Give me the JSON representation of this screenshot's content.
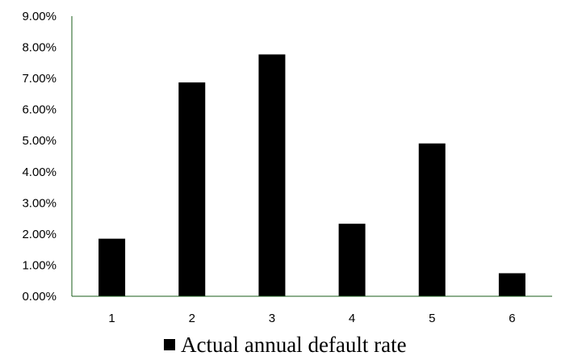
{
  "chart_data": {
    "type": "bar",
    "categories": [
      "1",
      "2",
      "3",
      "4",
      "5",
      "6"
    ],
    "series": [
      {
        "name": "Actual annual default rate",
        "values": [
          0.0185,
          0.0687,
          0.0777,
          0.0233,
          0.0491,
          0.0074
        ],
        "color": "#000000"
      }
    ],
    "ylim": [
      0,
      0.09
    ],
    "yticks": [
      0,
      0.01,
      0.02,
      0.03,
      0.04,
      0.05,
      0.06,
      0.07,
      0.08,
      0.09
    ],
    "ytick_labels": [
      "0.00%",
      "1.00%",
      "2.00%",
      "3.00%",
      "4.00%",
      "5.00%",
      "6.00%",
      "7.00%",
      "8.00%",
      "9.00%"
    ],
    "title": "",
    "xlabel": "",
    "ylabel": "",
    "grid": false,
    "legend_position": "bottom",
    "axis_color": "#1a5c1a"
  }
}
